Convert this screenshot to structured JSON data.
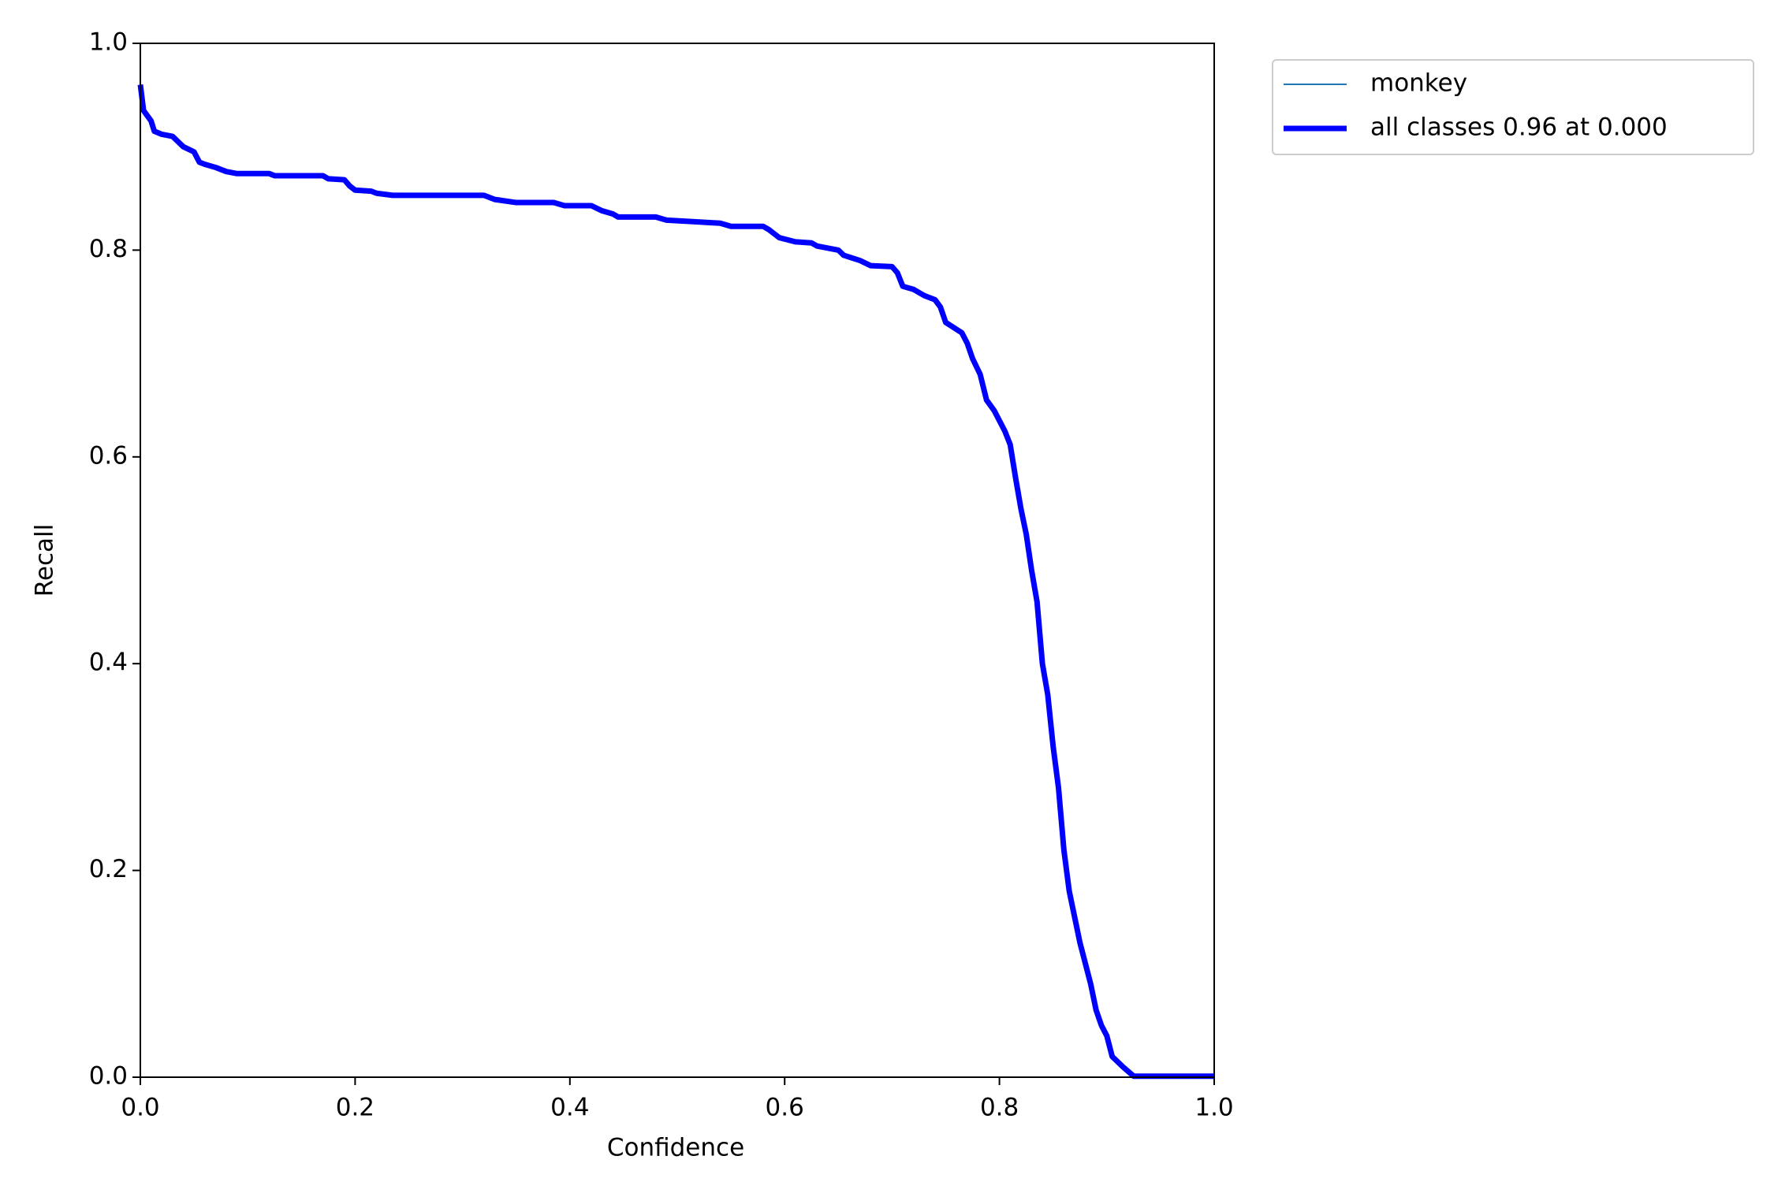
{
  "chart_data": {
    "type": "line",
    "xlabel": "Confidence",
    "ylabel": "Recall",
    "xlim": [
      0,
      1
    ],
    "ylim": [
      0,
      1
    ],
    "xticks": [
      {
        "value": 0,
        "label": "0.0"
      },
      0.2,
      0.4,
      0.6,
      0.8,
      {
        "value": 1,
        "label": "1.0"
      }
    ],
    "yticks": [
      {
        "value": 0,
        "label": "0.0"
      },
      0.2,
      0.4,
      0.6,
      0.8,
      {
        "value": 1,
        "label": "1.0"
      }
    ],
    "legend": "outside upper right",
    "x": [
      0,
      0.003,
      0.01,
      0.013,
      0.02,
      0.03,
      0.035,
      0.04,
      0.05,
      0.055,
      0.06,
      0.07,
      0.08,
      0.09,
      0.12,
      0.125,
      0.17,
      0.175,
      0.19,
      0.195,
      0.2,
      0.215,
      0.22,
      0.235,
      0.32,
      0.33,
      0.35,
      0.385,
      0.395,
      0.42,
      0.43,
      0.44,
      0.445,
      0.48,
      0.49,
      0.54,
      0.55,
      0.58,
      0.585,
      0.595,
      0.61,
      0.625,
      0.63,
      0.65,
      0.655,
      0.67,
      0.68,
      0.7,
      0.705,
      0.71,
      0.72,
      0.73,
      0.74,
      0.745,
      0.75,
      0.765,
      0.77,
      0.775,
      0.782,
      0.788,
      0.795,
      0.8,
      0.805,
      0.81,
      0.815,
      0.82,
      0.825,
      0.83,
      0.835,
      0.84,
      0.845,
      0.85,
      0.855,
      0.86,
      0.865,
      0.87,
      0.875,
      0.88,
      0.885,
      0.89,
      0.895,
      0.9,
      0.905,
      0.915,
      0.925,
      1
    ],
    "series": [
      {
        "name": "monkey",
        "color": "#1f77b4",
        "width": 2,
        "values": [
          0.96,
          0.935,
          0.925,
          0.915,
          0.912,
          0.91,
          0.905,
          0.9,
          0.895,
          0.885,
          0.883,
          0.88,
          0.876,
          0.874,
          0.874,
          0.872,
          0.872,
          0.869,
          0.868,
          0.862,
          0.858,
          0.857,
          0.855,
          0.853,
          0.853,
          0.849,
          0.846,
          0.846,
          0.843,
          0.843,
          0.838,
          0.835,
          0.832,
          0.832,
          0.829,
          0.826,
          0.823,
          0.823,
          0.82,
          0.812,
          0.808,
          0.807,
          0.804,
          0.8,
          0.795,
          0.79,
          0.785,
          0.784,
          0.778,
          0.765,
          0.762,
          0.756,
          0.752,
          0.745,
          0.73,
          0.72,
          0.71,
          0.695,
          0.68,
          0.655,
          0.645,
          0.635,
          0.625,
          0.612,
          0.58,
          0.55,
          0.525,
          0.49,
          0.46,
          0.4,
          0.37,
          0.32,
          0.28,
          0.22,
          0.18,
          0.155,
          0.13,
          0.11,
          0.09,
          0.065,
          0.05,
          0.04,
          0.02,
          0.01,
          0.001,
          0.001
        ]
      },
      {
        "name": "all classes 0.96 at 0.000",
        "color": "#0000ff",
        "width": 7,
        "values": [
          0.96,
          0.935,
          0.925,
          0.915,
          0.912,
          0.91,
          0.905,
          0.9,
          0.895,
          0.885,
          0.883,
          0.88,
          0.876,
          0.874,
          0.874,
          0.872,
          0.872,
          0.869,
          0.868,
          0.862,
          0.858,
          0.857,
          0.855,
          0.853,
          0.853,
          0.849,
          0.846,
          0.846,
          0.843,
          0.843,
          0.838,
          0.835,
          0.832,
          0.832,
          0.829,
          0.826,
          0.823,
          0.823,
          0.82,
          0.812,
          0.808,
          0.807,
          0.804,
          0.8,
          0.795,
          0.79,
          0.785,
          0.784,
          0.778,
          0.765,
          0.762,
          0.756,
          0.752,
          0.745,
          0.73,
          0.72,
          0.71,
          0.695,
          0.68,
          0.655,
          0.645,
          0.635,
          0.625,
          0.612,
          0.58,
          0.55,
          0.525,
          0.49,
          0.46,
          0.4,
          0.37,
          0.32,
          0.28,
          0.22,
          0.18,
          0.155,
          0.13,
          0.11,
          0.09,
          0.065,
          0.05,
          0.04,
          0.02,
          0.01,
          0.001,
          0.001
        ]
      }
    ]
  }
}
